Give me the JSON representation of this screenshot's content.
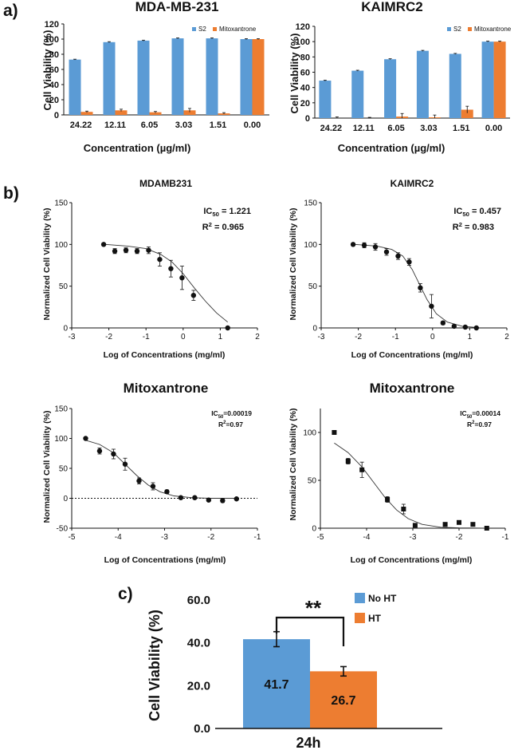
{
  "panel_labels": {
    "a": "a)",
    "b": "b)",
    "c": "c)"
  },
  "colors": {
    "s2": "#5B9BD5",
    "mitox": "#ED7D31",
    "noht": "#5B9BD5",
    "ht": "#ED7D31"
  },
  "chart_data": [
    {
      "id": "a1",
      "type": "bar",
      "title": "MDA-MB-231",
      "xlabel": "Concentration (µg/ml)",
      "ylabel": "Cell Viability (%)",
      "categories": [
        "24.22",
        "12.11",
        "6.05",
        "3.03",
        "1.51",
        "0.00"
      ],
      "yticks": [
        "0",
        "20",
        "40",
        "60",
        "80",
        "100",
        "120"
      ],
      "ylim": [
        0,
        120
      ],
      "legend": [
        "S2",
        "Mitoxantrone"
      ],
      "series": [
        {
          "name": "S2",
          "values": [
            73,
            96,
            98,
            101,
            101,
            100
          ],
          "errors": [
            0.5,
            0.6,
            0.6,
            0.6,
            0.6,
            0.6
          ]
        },
        {
          "name": "Mitoxantrone",
          "values": [
            4,
            6,
            3.5,
            6,
            2,
            100
          ],
          "errors": [
            1,
            1.5,
            1,
            2.5,
            1,
            0.6
          ]
        }
      ]
    },
    {
      "id": "a2",
      "type": "bar",
      "title": "KAIMRC2",
      "xlabel": "Concentration (µg/ml)",
      "ylabel": "Cell Viability (%)",
      "categories": [
        "24.22",
        "12.11",
        "6.05",
        "3.03",
        "1.51",
        "0.00"
      ],
      "yticks": [
        "0",
        "20",
        "40",
        "60",
        "80",
        "100",
        "120"
      ],
      "ylim": [
        0,
        120
      ],
      "legend": [
        "S2",
        "Mitoxantrone"
      ],
      "series": [
        {
          "name": "S2",
          "values": [
            49,
            62,
            77,
            88,
            84,
            100
          ],
          "errors": [
            0.6,
            0.6,
            0.6,
            0.6,
            0.6,
            0.6
          ]
        },
        {
          "name": "Mitoxantrone",
          "values": [
            0,
            0,
            2,
            1,
            11,
            100
          ],
          "errors": [
            1.5,
            1,
            4,
            3,
            4.5,
            0.6
          ]
        }
      ]
    },
    {
      "id": "b1",
      "type": "scatter",
      "title": "MDAMB231",
      "xlabel": "Log of Concentrations (mg/ml)",
      "ylabel": "Normalized Cell Viability (%)",
      "xticks": [
        "-3",
        "-2",
        "-1",
        "0",
        "1",
        "2"
      ],
      "xlim": [
        -3,
        2
      ],
      "yticks": [
        "0",
        "50",
        "100",
        "150"
      ],
      "ylim": [
        0,
        150
      ],
      "stat_ic50": "IC50 = 1.221",
      "stat_r2": "R2 = 0.965",
      "points": [
        {
          "x": -2.14,
          "y": 100,
          "e": 0
        },
        {
          "x": -1.84,
          "y": 92,
          "e": 3
        },
        {
          "x": -1.54,
          "y": 93,
          "e": 3
        },
        {
          "x": -1.24,
          "y": 92,
          "e": 3
        },
        {
          "x": -0.93,
          "y": 93,
          "e": 4
        },
        {
          "x": -0.63,
          "y": 82,
          "e": 8
        },
        {
          "x": -0.33,
          "y": 71,
          "e": 10
        },
        {
          "x": -0.03,
          "y": 60,
          "e": 14
        },
        {
          "x": 0.28,
          "y": 39,
          "e": 6
        },
        {
          "x": 1.2,
          "y": 0,
          "e": 0
        }
      ],
      "curve": [
        {
          "x": -2.1,
          "y": 100
        },
        {
          "x": -1.5,
          "y": 98
        },
        {
          "x": -1.0,
          "y": 95
        },
        {
          "x": -0.6,
          "y": 88
        },
        {
          "x": -0.3,
          "y": 79
        },
        {
          "x": 0.0,
          "y": 65
        },
        {
          "x": 0.3,
          "y": 48
        },
        {
          "x": 0.6,
          "y": 32
        },
        {
          "x": 0.9,
          "y": 18
        },
        {
          "x": 1.2,
          "y": 7
        }
      ]
    },
    {
      "id": "b2",
      "type": "scatter",
      "title": "KAIMRC2",
      "xlabel": "Log of Concentrations (mg/ml)",
      "ylabel": "Normalized Cell Viability (%)",
      "xticks": [
        "-3",
        "-2",
        "-1",
        "0",
        "1",
        "2"
      ],
      "xlim": [
        -3,
        2
      ],
      "yticks": [
        "0",
        "50",
        "100",
        "150"
      ],
      "ylim": [
        0,
        150
      ],
      "stat_ic50": "IC50 = 0.457",
      "stat_r2": "R2 = 0.983",
      "points": [
        {
          "x": -2.14,
          "y": 100,
          "e": 0
        },
        {
          "x": -1.84,
          "y": 99,
          "e": 3
        },
        {
          "x": -1.54,
          "y": 97,
          "e": 4
        },
        {
          "x": -1.24,
          "y": 91,
          "e": 4
        },
        {
          "x": -0.93,
          "y": 86,
          "e": 4
        },
        {
          "x": -0.63,
          "y": 79,
          "e": 4
        },
        {
          "x": -0.33,
          "y": 48,
          "e": 5
        },
        {
          "x": -0.03,
          "y": 26,
          "e": 14
        },
        {
          "x": 0.28,
          "y": 6,
          "e": 2
        },
        {
          "x": 0.58,
          "y": 2,
          "e": 1
        },
        {
          "x": 0.88,
          "y": 1,
          "e": 1
        },
        {
          "x": 1.18,
          "y": 0,
          "e": 0
        }
      ],
      "curve": [
        {
          "x": -2.1,
          "y": 100
        },
        {
          "x": -1.5,
          "y": 98
        },
        {
          "x": -1.1,
          "y": 94
        },
        {
          "x": -0.8,
          "y": 86
        },
        {
          "x": -0.55,
          "y": 70
        },
        {
          "x": -0.35,
          "y": 52
        },
        {
          "x": -0.15,
          "y": 34
        },
        {
          "x": 0.1,
          "y": 17
        },
        {
          "x": 0.4,
          "y": 7
        },
        {
          "x": 0.8,
          "y": 2
        },
        {
          "x": 1.2,
          "y": 0.5
        }
      ]
    },
    {
      "id": "b3",
      "type": "scatter",
      "title": "Mitoxantrone",
      "xlabel": "Log of Concentrations (mg/ml)",
      "ylabel": "Normalized Cell Viability (%)",
      "xticks": [
        "-5",
        "-4",
        "-3",
        "-2",
        "-1"
      ],
      "xlim": [
        -5,
        -1
      ],
      "yticks": [
        "-50",
        "0",
        "50",
        "100",
        "150"
      ],
      "ylim": [
        -50,
        150
      ],
      "stat_ic50": "IC50=0.00019",
      "stat_r2": "R2=0.97",
      "dotted_zero": true,
      "marker": "circle",
      "points": [
        {
          "x": -4.7,
          "y": 100,
          "e": 0
        },
        {
          "x": -4.4,
          "y": 79,
          "e": 5
        },
        {
          "x": -4.1,
          "y": 74,
          "e": 8
        },
        {
          "x": -3.85,
          "y": 57,
          "e": 10
        },
        {
          "x": -3.55,
          "y": 29,
          "e": 5
        },
        {
          "x": -3.25,
          "y": 20,
          "e": 6
        },
        {
          "x": -2.95,
          "y": 11,
          "e": 3
        },
        {
          "x": -2.65,
          "y": 1,
          "e": 2
        },
        {
          "x": -2.35,
          "y": 1,
          "e": 2
        },
        {
          "x": -2.05,
          "y": -3,
          "e": 2
        },
        {
          "x": -1.75,
          "y": -4,
          "e": 3
        },
        {
          "x": -1.45,
          "y": -1,
          "e": 2
        }
      ],
      "curve": [
        {
          "x": -4.7,
          "y": 97
        },
        {
          "x": -4.4,
          "y": 90
        },
        {
          "x": -4.1,
          "y": 76
        },
        {
          "x": -3.85,
          "y": 57
        },
        {
          "x": -3.6,
          "y": 38
        },
        {
          "x": -3.35,
          "y": 22
        },
        {
          "x": -3.1,
          "y": 11
        },
        {
          "x": -2.8,
          "y": 4
        },
        {
          "x": -2.4,
          "y": 1
        },
        {
          "x": -2.0,
          "y": 0
        },
        {
          "x": -1.4,
          "y": 0
        }
      ]
    },
    {
      "id": "b4",
      "type": "scatter",
      "title": "Mitoxantrone",
      "xlabel": "Log of Concentrations (mg/ml)",
      "ylabel": "Normalized Cell Viability (%)",
      "xticks": [
        "-5",
        "-4",
        "-3",
        "-2",
        "-1"
      ],
      "xlim": [
        -5,
        -1
      ],
      "yticks": [
        "0",
        "50",
        "100"
      ],
      "ylim": [
        0,
        125
      ],
      "stat_ic50": "IC50=0.00014",
      "stat_r2": "R2=0.97",
      "dotted_zero": true,
      "marker": "square",
      "points": [
        {
          "x": -4.7,
          "y": 100,
          "e": 0
        },
        {
          "x": -4.4,
          "y": 70,
          "e": 3
        },
        {
          "x": -4.1,
          "y": 61,
          "e": 8
        },
        {
          "x": -3.55,
          "y": 30,
          "e": 3
        },
        {
          "x": -3.2,
          "y": 20,
          "e": 5
        },
        {
          "x": -2.95,
          "y": 3,
          "e": 1
        },
        {
          "x": -2.3,
          "y": 4,
          "e": 1
        },
        {
          "x": -2.0,
          "y": 6,
          "e": 1
        },
        {
          "x": -1.7,
          "y": 4,
          "e": 1
        },
        {
          "x": -1.4,
          "y": 0,
          "e": 1
        }
      ],
      "curve": [
        {
          "x": -4.7,
          "y": 89
        },
        {
          "x": -4.4,
          "y": 79
        },
        {
          "x": -4.1,
          "y": 64
        },
        {
          "x": -3.85,
          "y": 48
        },
        {
          "x": -3.6,
          "y": 32
        },
        {
          "x": -3.35,
          "y": 19
        },
        {
          "x": -3.1,
          "y": 10
        },
        {
          "x": -2.8,
          "y": 4
        },
        {
          "x": -2.4,
          "y": 1
        },
        {
          "x": -2.0,
          "y": 0.3
        },
        {
          "x": -1.4,
          "y": 0
        }
      ]
    },
    {
      "id": "c",
      "type": "bar",
      "xlabel": "24h",
      "ylabel": "Cell Viability (%)",
      "yticks": [
        "0.0",
        "20.0",
        "40.0",
        "60.0"
      ],
      "ylim": [
        0,
        60
      ],
      "significance": "**",
      "series": [
        {
          "name": "No HT",
          "value": 41.7,
          "label": "41.7",
          "error": 3.5
        },
        {
          "name": "HT",
          "value": 26.7,
          "label": "26.7",
          "error": 2.2
        }
      ]
    }
  ]
}
